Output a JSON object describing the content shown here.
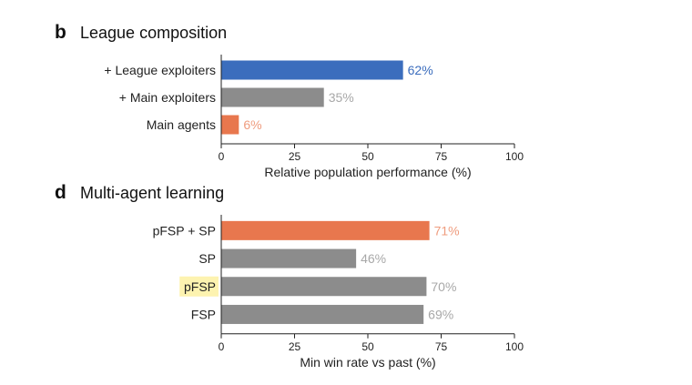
{
  "chart_data": [
    {
      "type": "bar",
      "orientation": "horizontal",
      "panel_letter": "b",
      "title": "League composition",
      "xlabel": "Relative population performance (%)",
      "xlim": [
        0,
        100
      ],
      "ticks": [
        0,
        25,
        50,
        75,
        100
      ],
      "categories": [
        "+ League exploiters",
        "+ Main exploiters",
        "Main agents"
      ],
      "values": [
        62,
        35,
        6
      ],
      "value_labels": [
        "62%",
        "35%",
        "6%"
      ],
      "bar_colors": [
        "#3b6dbd",
        "#8c8c8c",
        "#e8774e"
      ],
      "label_colors": [
        "#3b6dbd",
        "#a8a8a8",
        "#ef9c7e"
      ],
      "highlighted_category": null
    },
    {
      "type": "bar",
      "orientation": "horizontal",
      "panel_letter": "d",
      "title": "Multi-agent learning",
      "xlabel": "Min win rate vs past (%)",
      "xlim": [
        0,
        100
      ],
      "ticks": [
        0,
        25,
        50,
        75,
        100
      ],
      "categories": [
        "pFSP + SP",
        "SP",
        "pFSP",
        "FSP"
      ],
      "values": [
        71,
        46,
        70,
        69
      ],
      "value_labels": [
        "71%",
        "46%",
        "70%",
        "69%"
      ],
      "bar_colors": [
        "#e8774e",
        "#8c8c8c",
        "#8c8c8c",
        "#8c8c8c"
      ],
      "label_colors": [
        "#ef9c7e",
        "#a8a8a8",
        "#a8a8a8",
        "#a8a8a8"
      ],
      "highlighted_category": "pFSP",
      "highlight_color": "#fdf3b0"
    }
  ]
}
